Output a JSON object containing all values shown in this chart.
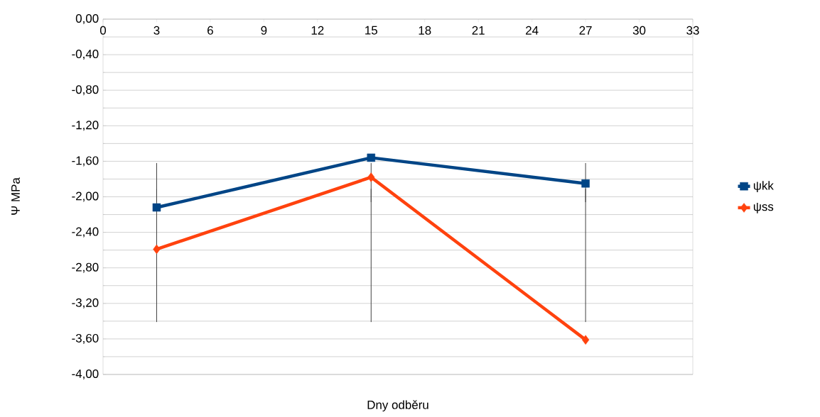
{
  "chart_data": {
    "type": "line",
    "xlabel": "Dny odběru",
    "ylabel": "Ψ MPa",
    "xlim": [
      0,
      33
    ],
    "xticks": [
      0,
      3,
      6,
      9,
      12,
      15,
      18,
      21,
      24,
      27,
      30,
      33
    ],
    "ylim": [
      -4,
      0
    ],
    "yticks": [
      {
        "value": 0,
        "label": "0,00"
      },
      {
        "value": -0.4,
        "label": "-0,40"
      },
      {
        "value": -0.8,
        "label": "-0,80"
      },
      {
        "value": -1.2,
        "label": "-1,20"
      },
      {
        "value": -1.6,
        "label": "-1,60"
      },
      {
        "value": -2.0,
        "label": "-2,00"
      },
      {
        "value": -2.4,
        "label": "-2,40"
      },
      {
        "value": -2.8,
        "label": "-2,80"
      },
      {
        "value": -3.2,
        "label": "-3,20"
      },
      {
        "value": -3.6,
        "label": "-3,60"
      },
      {
        "value": -4.0,
        "label": "-4,00"
      }
    ],
    "x": [
      3,
      15,
      27
    ],
    "series": [
      {
        "name": "ψkk",
        "color": "#004586",
        "marker": "square",
        "values": [
          -2.12,
          -1.56,
          -1.85
        ],
        "errors": [
          [
            -2.06,
            -1.62
          ],
          [
            -2.06,
            -1.62
          ],
          [
            -2.06,
            -1.62
          ]
        ]
      },
      {
        "name": "ψss",
        "color": "#ff420e",
        "marker": "diamond",
        "values": [
          -2.59,
          -1.78,
          -3.61
        ],
        "errors": [
          [
            -3.41,
            -1.91
          ],
          [
            -3.41,
            -1.91
          ],
          [
            -3.41,
            -1.91
          ]
        ]
      }
    ],
    "grid": "y",
    "legend": "right"
  }
}
